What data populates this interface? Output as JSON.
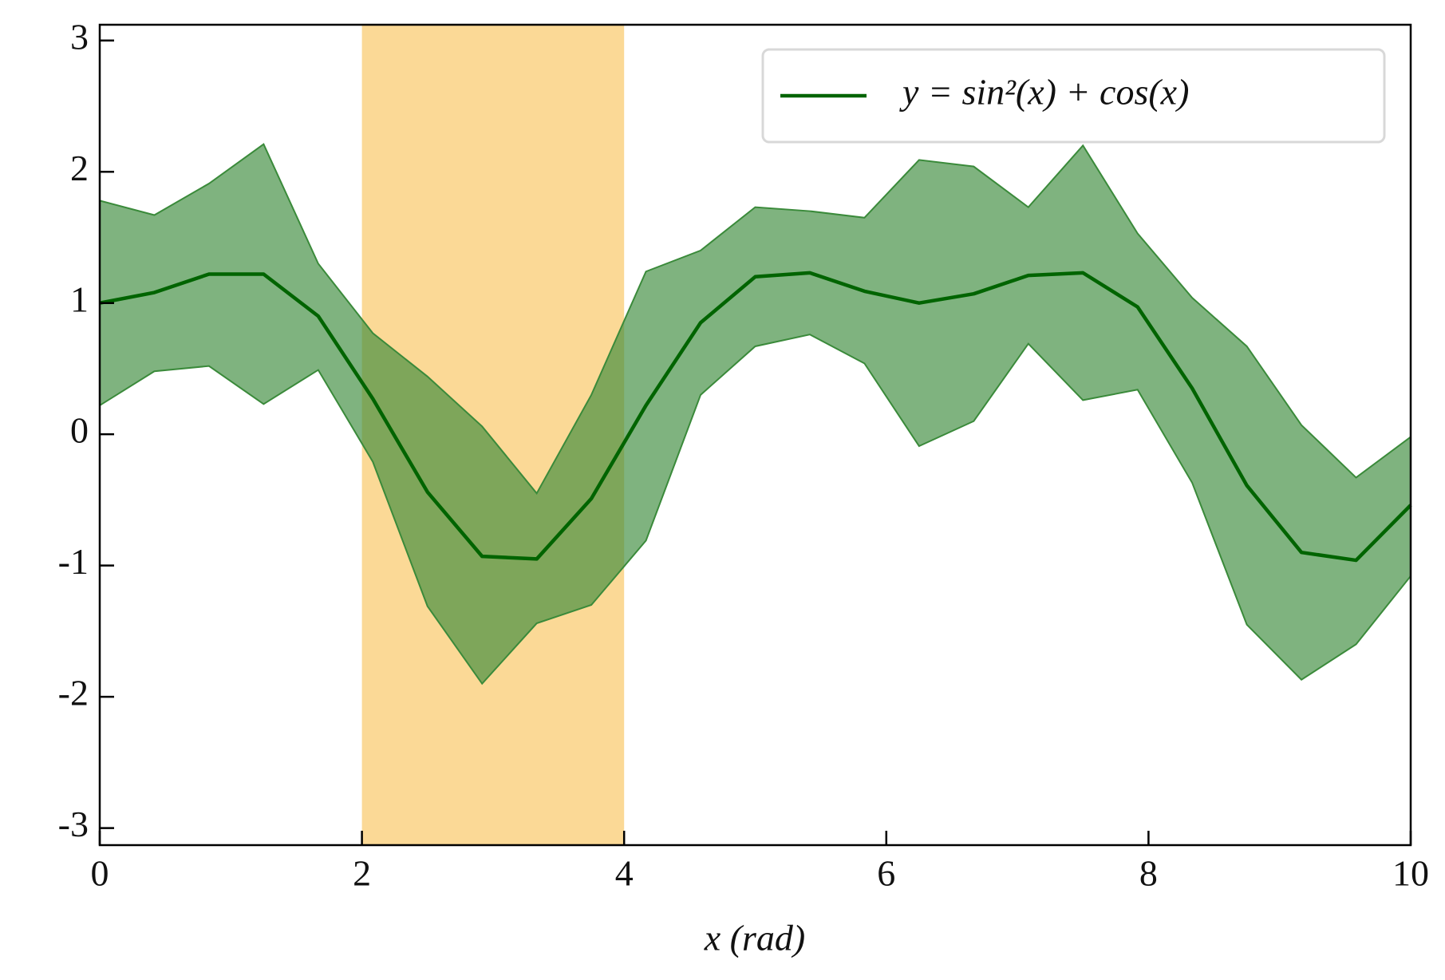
{
  "chart_data": {
    "type": "line",
    "xlabel": "x (rad)",
    "x": [
      0,
      0.4167,
      0.8333,
      1.25,
      1.6667,
      2.0833,
      2.5,
      2.9167,
      3.3333,
      3.75,
      4.1667,
      4.5833,
      5.0,
      5.4167,
      5.8333,
      6.25,
      6.6667,
      7.0833,
      7.5,
      7.9167,
      8.3333,
      8.75,
      9.1667,
      9.5833,
      10
    ],
    "series": [
      {
        "name": "y = sin²(x) + cos(x)",
        "color": "#006400",
        "values": [
          1.0,
          1.08,
          1.22,
          1.22,
          0.9,
          0.27,
          -0.44,
          -0.93,
          -0.95,
          -0.49,
          0.22,
          0.85,
          1.2,
          1.23,
          1.09,
          1.0,
          1.07,
          1.21,
          1.23,
          0.97,
          0.35,
          -0.39,
          -0.9,
          -0.96,
          -0.54
        ]
      }
    ],
    "band": {
      "color": "#3a8a3a",
      "upper": [
        1.78,
        1.67,
        1.91,
        2.21,
        1.3,
        0.77,
        0.44,
        0.06,
        -0.45,
        0.3,
        1.24,
        1.4,
        1.73,
        1.7,
        1.65,
        2.09,
        2.04,
        1.73,
        2.2,
        1.53,
        1.04,
        0.67,
        0.07,
        -0.33,
        -0.02
      ],
      "lower": [
        0.22,
        0.48,
        0.52,
        0.23,
        0.49,
        -0.21,
        -1.31,
        -1.9,
        -1.44,
        -1.3,
        -0.81,
        0.3,
        0.67,
        0.76,
        0.54,
        -0.09,
        0.1,
        0.69,
        0.26,
        0.34,
        -0.37,
        -1.45,
        -1.87,
        -1.6,
        -1.08
      ]
    },
    "span": {
      "x": [
        2,
        4
      ],
      "color": "#fbd996"
    },
    "xlim": [
      0,
      10
    ],
    "ylim": [
      -3.13,
      3.12
    ],
    "xticks": [
      0,
      2,
      4,
      6,
      8,
      10
    ],
    "yticks": [
      -3,
      -2,
      -1,
      0,
      1,
      2,
      3
    ],
    "legend": "upper right"
  }
}
